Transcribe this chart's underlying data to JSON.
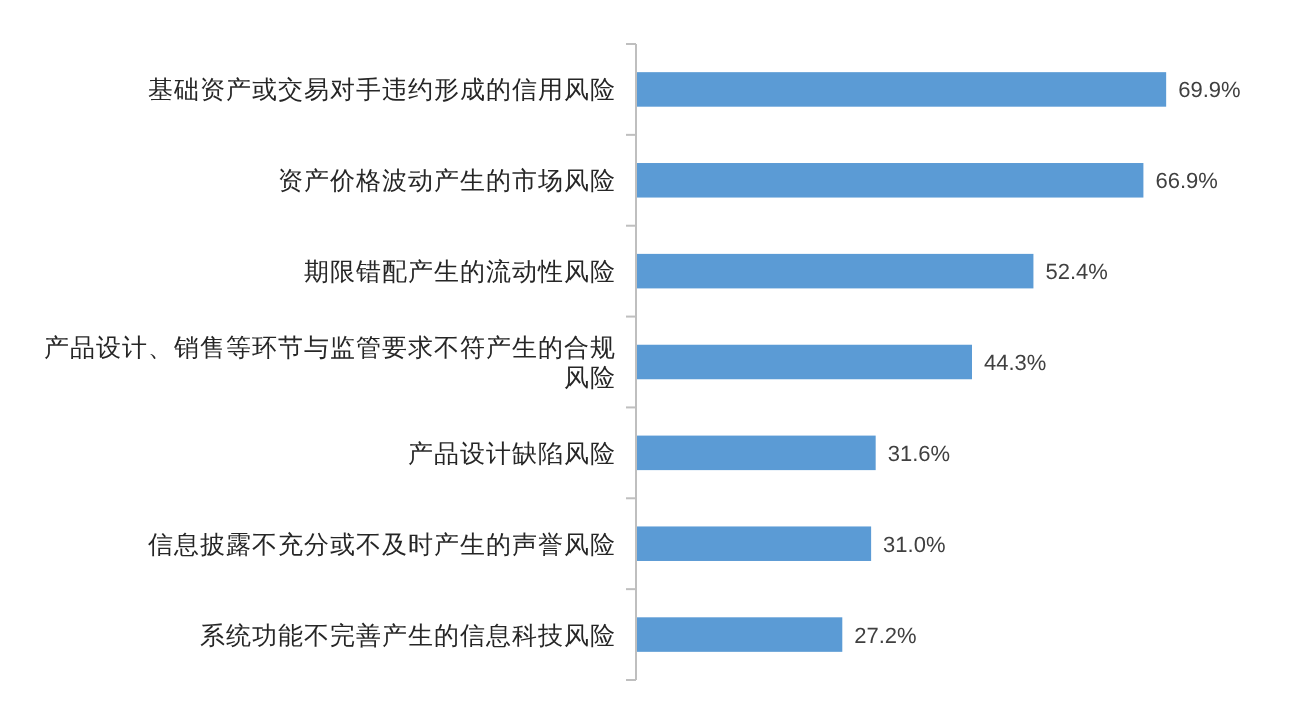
{
  "chart_data": {
    "type": "bar",
    "orientation": "horizontal",
    "categories": [
      "基础资产或交易对手违约形成的信用风险",
      "资产价格波动产生的市场风险",
      "期限错配产生的流动性风险",
      "产品设计、销售等环节与监管要求不符产生的合规风险",
      "产品设计缺陷风险",
      "信息披露不充分或不及时产生的声誉风险",
      "系统功能不完善产生的信息科技风险"
    ],
    "values": [
      69.9,
      66.9,
      52.4,
      44.3,
      31.6,
      31.0,
      27.2
    ],
    "value_labels": [
      "69.9%",
      "66.9%",
      "52.4%",
      "44.3%",
      "31.6%",
      "31.0%",
      "27.2%"
    ],
    "color": "#5b9bd5"
  }
}
